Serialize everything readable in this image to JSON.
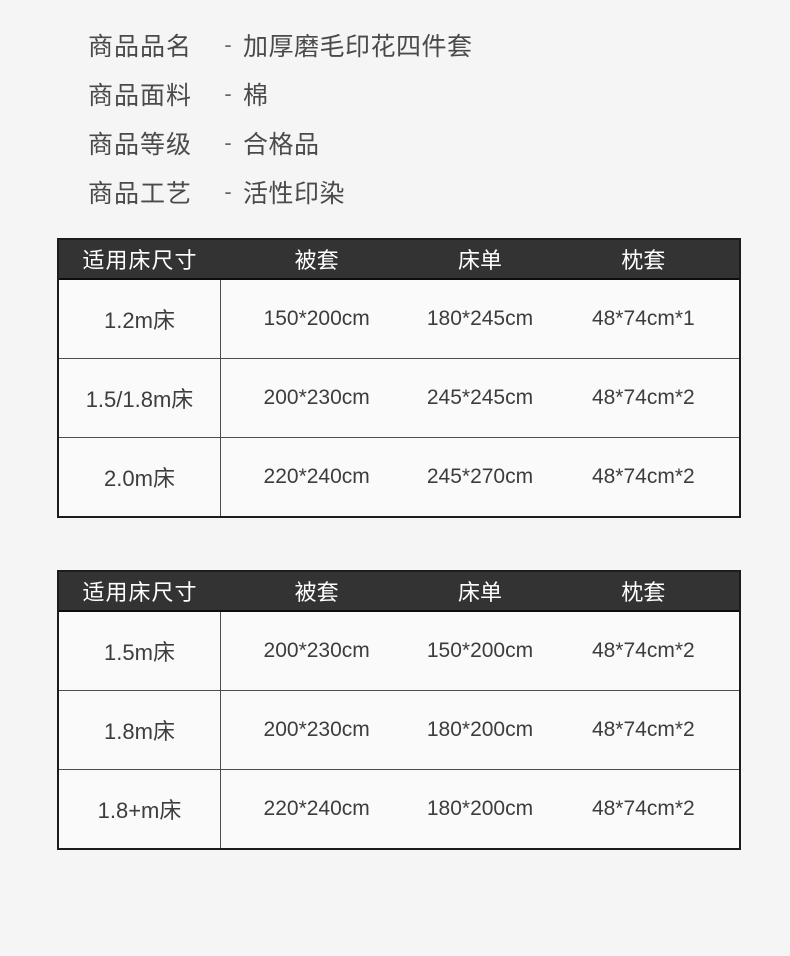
{
  "specs": {
    "separator": "-",
    "items": [
      {
        "label": "商品品名",
        "value": "加厚磨毛印花四件套"
      },
      {
        "label": "商品面料",
        "value": "棉"
      },
      {
        "label": "商品等级",
        "value": "合格品"
      },
      {
        "label": "商品工艺",
        "value": "活性印染"
      }
    ]
  },
  "tables": [
    {
      "headers": [
        "适用床尺寸",
        "被套",
        "床单",
        "枕套"
      ],
      "rows": [
        [
          "1.2m床",
          "150*200cm",
          "180*245cm",
          "48*74cm*1"
        ],
        [
          "1.5/1.8m床",
          "200*230cm",
          "245*245cm",
          "48*74cm*2"
        ],
        [
          "2.0m床",
          "220*240cm",
          "245*270cm",
          "48*74cm*2"
        ]
      ]
    },
    {
      "headers": [
        "适用床尺寸",
        "被套",
        "床单",
        "枕套"
      ],
      "rows": [
        [
          "1.5m床",
          "200*230cm",
          "150*200cm",
          "48*74cm*2"
        ],
        [
          "1.8m床",
          "200*230cm",
          "180*200cm",
          "48*74cm*2"
        ],
        [
          "1.8+m床",
          "220*240cm",
          "180*200cm",
          "48*74cm*2"
        ]
      ]
    }
  ],
  "colors": {
    "page_bg": "#f5f5f5",
    "cell_bg": "#fafafa",
    "header_bg": "#333333",
    "header_text": "#ffffff",
    "outer_border": "#1c1c1c",
    "divider": "#4d4d4d",
    "text": "#3d3d3d"
  }
}
